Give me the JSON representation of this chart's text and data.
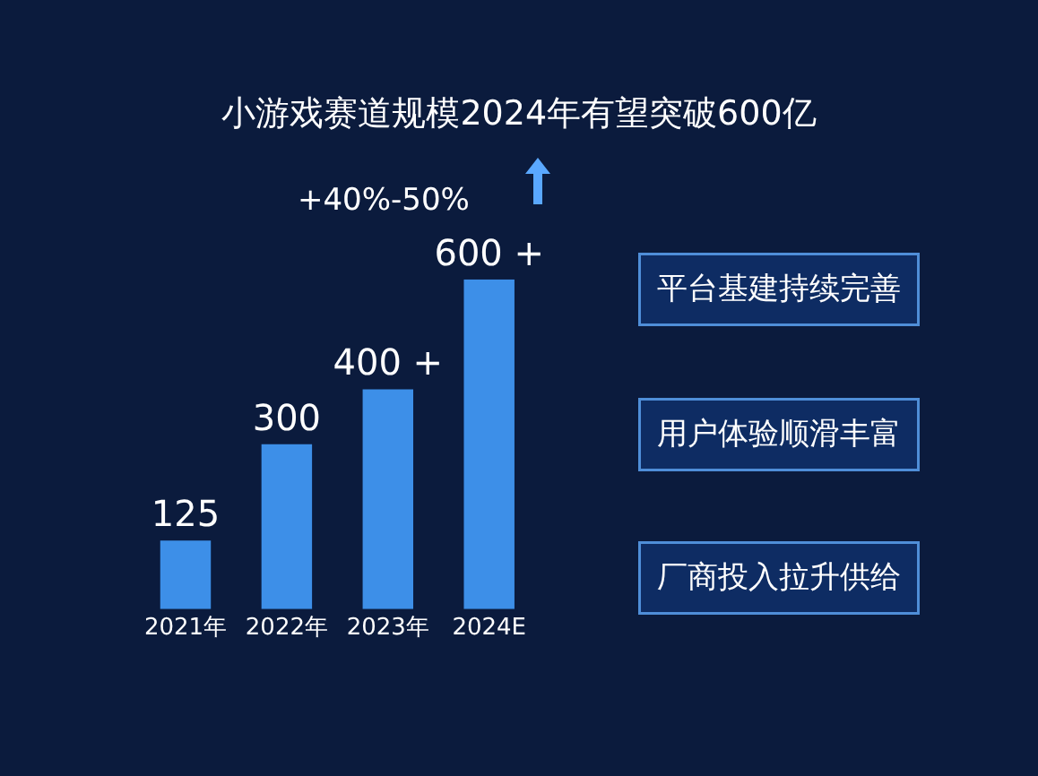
{
  "chart_data": {
    "type": "bar",
    "title": "小游戏赛道规模2024年有望突破600亿",
    "categories": [
      "2021年",
      "2022年",
      "2023年",
      "2024E"
    ],
    "values": [
      125,
      300,
      400,
      600
    ],
    "value_labels": [
      "125",
      "300",
      "400 +",
      "600 +"
    ],
    "color": "#3d8fe8",
    "annotations": [
      "+40%-50%",
      "平台基建持续完善",
      "用户体验顺滑丰富",
      "厂商投入拉升供给"
    ]
  }
}
